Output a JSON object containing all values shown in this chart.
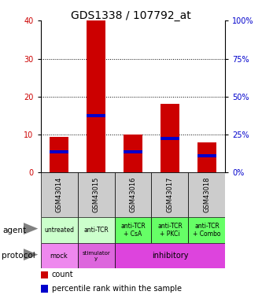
{
  "title": "GDS1338 / 107792_at",
  "samples": [
    "GSM43014",
    "GSM43015",
    "GSM43016",
    "GSM43017",
    "GSM43018"
  ],
  "count_values": [
    9.5,
    40,
    10,
    18,
    8
  ],
  "percentile_marker_pos": [
    5.5,
    15,
    5.5,
    9,
    4.5
  ],
  "ylim_left": [
    0,
    40
  ],
  "ylim_right": [
    0,
    100
  ],
  "yticks_left": [
    0,
    10,
    20,
    30,
    40
  ],
  "yticks_right": [
    0,
    25,
    50,
    75,
    100
  ],
  "bar_color": "#cc0000",
  "percentile_color": "#0000cc",
  "agent_labels": [
    "untreated",
    "anti-TCR",
    "anti-TCR\n+ CsA",
    "anti-TCR\n+ PKCi",
    "anti-TCR\n+ Combo"
  ],
  "agent_bg_colors": [
    "#ccffcc",
    "#ccffcc",
    "#66ff66",
    "#66ff66",
    "#66ff66"
  ],
  "protocol_mock_color": "#ee88ee",
  "protocol_stim_color": "#dd66dd",
  "protocol_inhib_color": "#dd44dd",
  "sample_box_color": "#cccccc",
  "left_axis_color": "#cc0000",
  "right_axis_color": "#0000cc",
  "title_fontsize": 10,
  "tick_fontsize": 7,
  "label_fontsize": 6,
  "legend_fontsize": 7,
  "bar_width": 0.5
}
